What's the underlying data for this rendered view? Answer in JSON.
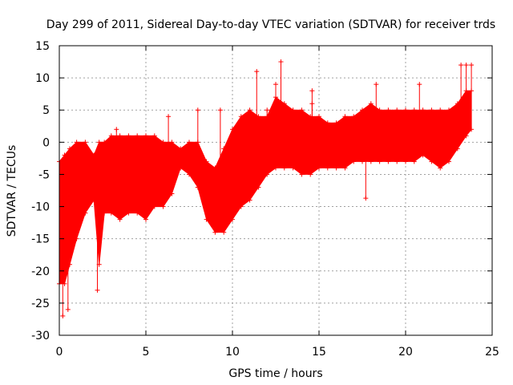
{
  "chart_data": {
    "type": "scatter",
    "title": "Day 299 of 2011, Sidereal Day-to-day VTEC variation (SDTVAR) for receiver trds",
    "xlabel": "GPS time / hours",
    "ylabel": "SDTVAR / TECUs",
    "xlim": [
      0,
      25
    ],
    "ylim": [
      -30,
      15
    ],
    "xticks": [
      0,
      5,
      10,
      15,
      20,
      25
    ],
    "yticks": [
      -30,
      -25,
      -20,
      -15,
      -10,
      -5,
      0,
      5,
      10,
      15
    ],
    "grid": true,
    "marker": "+",
    "series": [
      {
        "name": "SDTVAR",
        "color": "#ff0000",
        "envelope": {
          "x": [
            0.0,
            0.3,
            0.6,
            1.0,
            1.5,
            2.0,
            2.3,
            2.6,
            3.0,
            3.5,
            4.0,
            4.5,
            5.0,
            5.5,
            6.0,
            6.5,
            7.0,
            7.5,
            8.0,
            8.5,
            9.0,
            9.5,
            10.0,
            10.5,
            11.0,
            11.5,
            12.0,
            12.5,
            13.0,
            13.5,
            14.0,
            14.5,
            15.0,
            15.5,
            16.0,
            16.5,
            17.0,
            17.5,
            18.0,
            18.5,
            19.0,
            19.5,
            20.0,
            20.5,
            21.0,
            21.5,
            22.0,
            22.5,
            23.0,
            23.5,
            23.8
          ],
          "upper": [
            -3,
            -2,
            -1,
            0,
            0,
            -2,
            0,
            0,
            1,
            1,
            1,
            1,
            1,
            1,
            0,
            0,
            -1,
            0,
            0,
            -3,
            -4,
            -1,
            2,
            4,
            5,
            4,
            4,
            7,
            6,
            5,
            5,
            4,
            4,
            3,
            3,
            4,
            4,
            5,
            6,
            5,
            5,
            5,
            5,
            5,
            5,
            5,
            5,
            5,
            6,
            8,
            8
          ],
          "lower": [
            -22,
            -22,
            -19,
            -15,
            -11,
            -9,
            -19,
            -11,
            -11,
            -12,
            -11,
            -11,
            -12,
            -10,
            -10,
            -8,
            -4,
            -5,
            -7,
            -12,
            -14,
            -14,
            -12,
            -10,
            -9,
            -7,
            -5,
            -4,
            -4,
            -4,
            -5,
            -5,
            -4,
            -4,
            -4,
            -4,
            -3,
            -3,
            -3,
            -3,
            -3,
            -3,
            -3,
            -3,
            -2,
            -3,
            -4,
            -3,
            -1,
            1,
            2
          ]
        },
        "outliers": [
          {
            "x": 0.2,
            "y": -27
          },
          {
            "x": 0.5,
            "y": -26
          },
          {
            "x": 2.2,
            "y": -23
          },
          {
            "x": 3.3,
            "y": 2
          },
          {
            "x": 6.3,
            "y": 4
          },
          {
            "x": 8.0,
            "y": 5
          },
          {
            "x": 9.3,
            "y": 5
          },
          {
            "x": 11.4,
            "y": 11
          },
          {
            "x": 12.0,
            "y": 5
          },
          {
            "x": 12.5,
            "y": 9
          },
          {
            "x": 12.8,
            "y": 12.5
          },
          {
            "x": 14.6,
            "y": 8
          },
          {
            "x": 14.6,
            "y": 6
          },
          {
            "x": 17.7,
            "y": -8.7
          },
          {
            "x": 18.3,
            "y": 9
          },
          {
            "x": 20.8,
            "y": 9
          },
          {
            "x": 23.2,
            "y": 12
          },
          {
            "x": 23.5,
            "y": 12
          },
          {
            "x": 23.8,
            "y": 12
          }
        ]
      }
    ]
  }
}
